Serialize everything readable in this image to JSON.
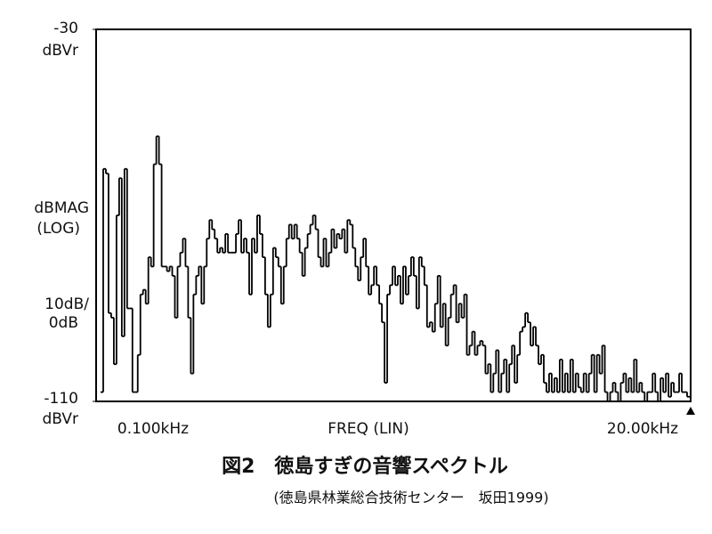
{
  "chart_data": {
    "type": "line",
    "step": true,
    "color": "#000000",
    "title": "図2　徳島すぎの音響スペクトル",
    "subtitle": "(徳島県林業総合技術センター　坂田1999)",
    "ylim": [
      -110,
      -30
    ],
    "yticks": [
      -110,
      -30
    ],
    "y_unit": "dBVr",
    "y_label": [
      "dBMAG",
      "(LOG)"
    ],
    "scale_label": [
      "10dB/",
      "0dB"
    ],
    "x_label": "FREQ (LIN)",
    "xtick_labels": [
      "0.100kHz",
      "20.00kHz"
    ],
    "values": [
      -108,
      -60,
      -61,
      -91,
      -92,
      -102,
      -70,
      -62,
      -96,
      -60,
      -90,
      -90,
      -108,
      -108,
      -100,
      -87,
      -86,
      -89,
      -79,
      -81,
      -59,
      -53,
      -59,
      -81,
      -81,
      -82,
      -81,
      -83,
      -92,
      -81,
      -78,
      -75,
      -81,
      -92,
      -104,
      -87,
      -83,
      -81,
      -89,
      -81,
      -75,
      -71,
      -73,
      -75,
      -78,
      -77,
      -78,
      -74,
      -78,
      -78,
      -78,
      -74,
      -71,
      -78,
      -75,
      -78,
      -87,
      -75,
      -78,
      -70,
      -74,
      -79,
      -87,
      -94,
      -87,
      -77,
      -79,
      -81,
      -89,
      -81,
      -75,
      -72,
      -75,
      -72,
      -75,
      -78,
      -83,
      -77,
      -74,
      -72,
      -70,
      -73,
      -79,
      -81,
      -75,
      -81,
      -78,
      -73,
      -77,
      -74,
      -75,
      -73,
      -78,
      -71,
      -72,
      -77,
      -81,
      -84,
      -79,
      -75,
      -81,
      -87,
      -85,
      -81,
      -85,
      -89,
      -93,
      -106,
      -87,
      -85,
      -81,
      -85,
      -83,
      -89,
      -81,
      -87,
      -83,
      -79,
      -83,
      -90,
      -79,
      -81,
      -85,
      -94,
      -93,
      -95,
      -89,
      -83,
      -94,
      -89,
      -98,
      -92,
      -87,
      -85,
      -93,
      -89,
      -92,
      -87,
      -100,
      -98,
      -95,
      -100,
      -98,
      -97,
      -98,
      -104,
      -102,
      -108,
      -104,
      -99,
      -108,
      -104,
      -101,
      -108,
      -102,
      -98,
      -106,
      -100,
      -95,
      -94,
      -91,
      -93,
      -98,
      -94,
      -98,
      -102,
      -100,
      -106,
      -108,
      -104,
      -108,
      -105,
      -108,
      -101,
      -108,
      -104,
      -108,
      -101,
      -108,
      -104,
      -107,
      -108,
      -104,
      -108,
      -104,
      -100,
      -108,
      -100,
      -104,
      -98,
      -108,
      -110,
      -108,
      -106,
      -108,
      -110,
      -106,
      -104,
      -108,
      -105,
      -108,
      -101,
      -108,
      -106,
      -108,
      -110,
      -108,
      -108,
      -104,
      -108,
      -110,
      -105,
      -108,
      -104,
      -109,
      -106,
      -108,
      -108,
      -104,
      -108,
      -108,
      -109
    ]
  }
}
